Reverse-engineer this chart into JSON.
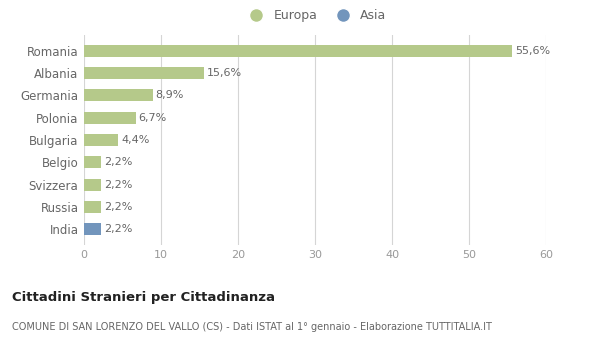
{
  "categories": [
    "Romania",
    "Albania",
    "Germania",
    "Polonia",
    "Bulgaria",
    "Belgio",
    "Svizzera",
    "Russia",
    "India"
  ],
  "values": [
    55.6,
    15.6,
    8.9,
    6.7,
    4.4,
    2.2,
    2.2,
    2.2,
    2.2
  ],
  "labels": [
    "55,6%",
    "15,6%",
    "8,9%",
    "6,7%",
    "4,4%",
    "2,2%",
    "2,2%",
    "2,2%",
    "2,2%"
  ],
  "colors": [
    "#b5c98a",
    "#b5c98a",
    "#b5c98a",
    "#b5c98a",
    "#b5c98a",
    "#b5c98a",
    "#b5c98a",
    "#b5c98a",
    "#7295bc"
  ],
  "europa_color": "#b5c98a",
  "asia_color": "#7295bc",
  "title": "Cittadini Stranieri per Cittadinanza",
  "subtitle": "COMUNE DI SAN LORENZO DEL VALLO (CS) - Dati ISTAT al 1° gennaio - Elaborazione TUTTITALIA.IT",
  "xlim": [
    0,
    60
  ],
  "xticks": [
    0,
    10,
    20,
    30,
    40,
    50,
    60
  ],
  "background_color": "#ffffff",
  "grid_color": "#d5d5d5",
  "bar_height": 0.55,
  "legend_europa": "Europa",
  "legend_asia": "Asia",
  "label_color": "#666666",
  "ytick_color": "#666666",
  "xtick_color": "#999999"
}
